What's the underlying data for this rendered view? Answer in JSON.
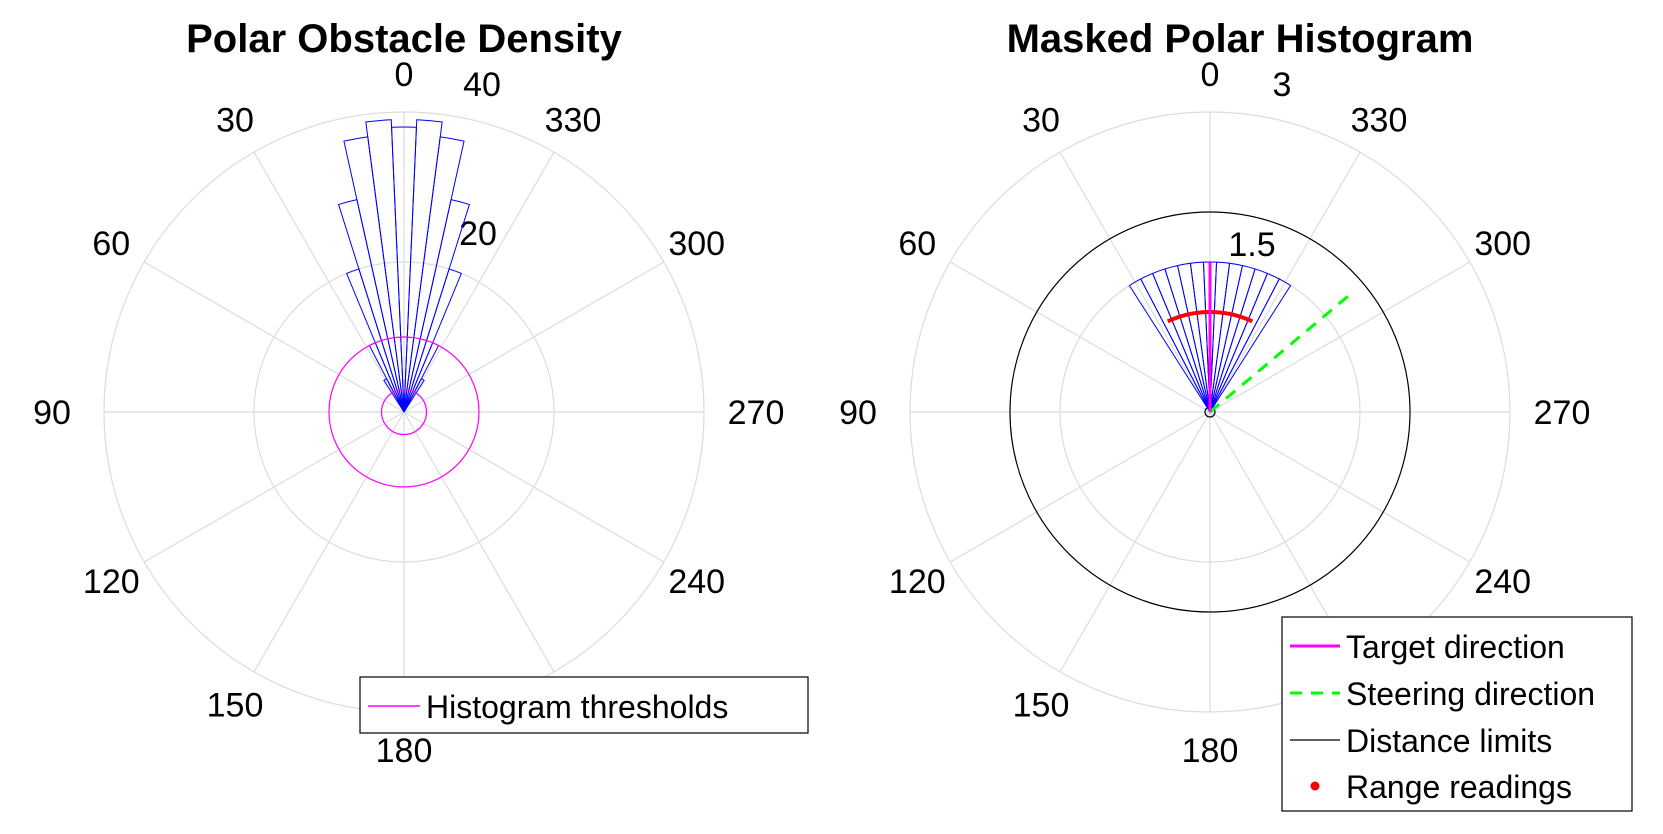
{
  "chart_data": [
    {
      "type": "polar-histogram",
      "title": "Polar Obstacle Density",
      "theta_direction": "counterclockwise",
      "theta_zero": "top",
      "theta_ticks": [
        "0",
        "30",
        "60",
        "90",
        "120",
        "150",
        "180",
        "240",
        "270",
        "300",
        "330"
      ],
      "r_ticks": [
        "20",
        "40"
      ],
      "r_tick_values": [
        20,
        40
      ],
      "rlim": [
        0,
        40
      ],
      "bins": {
        "angles_deg": [
          -30,
          -25,
          -20,
          -15,
          -10,
          -5,
          0,
          5,
          10,
          15,
          20,
          25,
          30
        ],
        "values": [
          5,
          10,
          20,
          29,
          37,
          39,
          38,
          39,
          37,
          29,
          20,
          10,
          5
        ],
        "bin_width_deg": 5
      },
      "thresholds": [
        3,
        10
      ],
      "colors": {
        "bins": "#0000ff",
        "thresholds": "#ff00ff",
        "grid": "#dcdcdc"
      },
      "legend": {
        "entries": [
          "Histogram thresholds"
        ],
        "placement": "bottom-right"
      }
    },
    {
      "type": "polar-histogram",
      "title": "Masked Polar Histogram",
      "theta_direction": "counterclockwise",
      "theta_zero": "top",
      "theta_ticks": [
        "0",
        "30",
        "60",
        "90",
        "120",
        "150",
        "180",
        "240",
        "270",
        "300",
        "330"
      ],
      "r_ticks": [
        "1.5",
        "3"
      ],
      "r_tick_values": [
        1.5,
        3
      ],
      "rlim": [
        0,
        3
      ],
      "bins": {
        "angles_deg": [
          -30,
          -25,
          -20,
          -15,
          -10,
          -5,
          0,
          5,
          10,
          15,
          20,
          25,
          30
        ],
        "values": [
          1.5,
          1.5,
          1.5,
          1.5,
          1.5,
          1.5,
          1.5,
          1.5,
          1.5,
          1.5,
          1.5,
          1.5,
          1.5
        ],
        "bin_width_deg": 5
      },
      "target_direction_deg": 0,
      "target_length": 1.5,
      "steering_direction_deg": -50,
      "steering_length": 1.85,
      "distance_limits": [
        0.05,
        2.0
      ],
      "range_readings": {
        "radius": 1.0,
        "from_deg": -25,
        "to_deg": 25
      },
      "colors": {
        "bins": "#0000ff",
        "target": "#ff00ff",
        "steering": "#00ff00",
        "limits": "#000000",
        "readings": "#ff0000",
        "grid": "#dcdcdc"
      },
      "legend": {
        "entries": [
          "Target direction",
          "Steering direction",
          "Distance limits",
          "Range readings"
        ],
        "placement": "bottom-right"
      }
    }
  ]
}
